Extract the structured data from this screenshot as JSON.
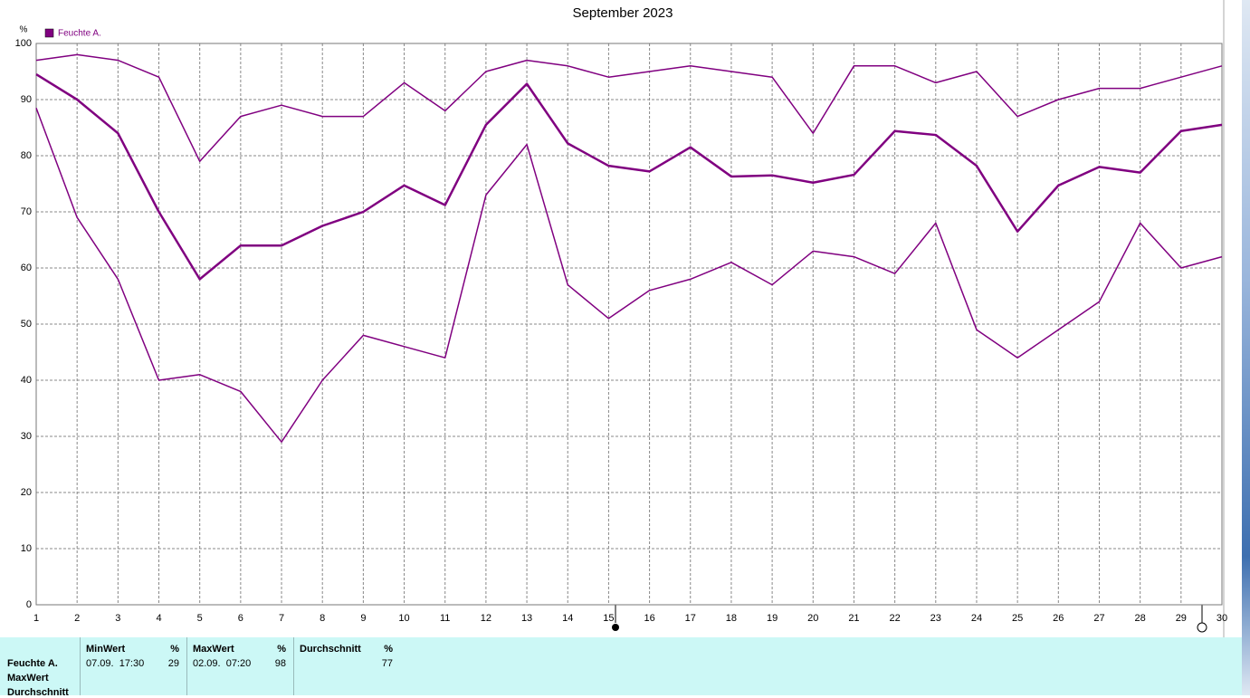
{
  "chart_data": {
    "type": "line",
    "title": "September 2023",
    "y_label": "%",
    "x": [
      1,
      2,
      3,
      4,
      5,
      6,
      7,
      8,
      9,
      10,
      11,
      12,
      13,
      14,
      15,
      16,
      17,
      18,
      19,
      20,
      21,
      22,
      23,
      24,
      25,
      26,
      27,
      28,
      29,
      30
    ],
    "xlim": [
      1,
      30
    ],
    "ylim": [
      0,
      100
    ],
    "xticks": [
      1,
      2,
      3,
      4,
      5,
      6,
      7,
      8,
      9,
      10,
      11,
      12,
      13,
      14,
      15,
      16,
      17,
      18,
      19,
      20,
      21,
      22,
      23,
      24,
      25,
      26,
      27,
      28,
      29,
      30
    ],
    "yticks": [
      0,
      10,
      20,
      30,
      40,
      50,
      60,
      70,
      80,
      90,
      100
    ],
    "grid": true,
    "legend": "top-left",
    "series": [
      {
        "name": "Feuchte A.",
        "color": "#800080",
        "width": 2.5,
        "values": [
          94.5,
          90,
          84,
          70,
          58,
          64,
          64,
          67.5,
          70,
          74.7,
          71.2,
          85.5,
          92.8,
          82.2,
          78.2,
          77.2,
          81.5,
          76.3,
          76.5,
          75.2,
          76.6,
          84.4,
          83.7,
          78.2,
          66.5,
          74.7,
          78,
          77,
          84.4,
          85.5
        ]
      },
      {
        "color": "#800080",
        "width": 1.5,
        "values": [
          97,
          98,
          97,
          94,
          79,
          87,
          89,
          87,
          87,
          93,
          88,
          95,
          97,
          96,
          94,
          95,
          96,
          95,
          94,
          84,
          96,
          96,
          93,
          95,
          87,
          90,
          92,
          92,
          94,
          96
        ]
      },
      {
        "color": "#800080",
        "width": 1.5,
        "values": [
          88.5,
          69,
          58,
          40,
          41,
          38,
          29,
          40,
          48,
          46,
          44,
          73,
          82,
          57,
          51,
          56,
          58,
          61,
          57,
          63,
          62,
          59,
          68,
          49,
          44,
          49,
          54,
          68,
          60,
          62
        ]
      }
    ]
  },
  "table": {
    "row_labels": [
      "Feuchte A.",
      "MaxWert",
      "Durchschnitt"
    ],
    "columns": [
      {
        "header": "MinWert",
        "unit": "%",
        "time": "07.09.  17:30",
        "value": 29
      },
      {
        "header": "MaxWert",
        "unit": "%",
        "time": "02.09.  07:20",
        "value": 98
      },
      {
        "header": "Durchschnitt",
        "unit": "%",
        "value": 77
      }
    ]
  }
}
